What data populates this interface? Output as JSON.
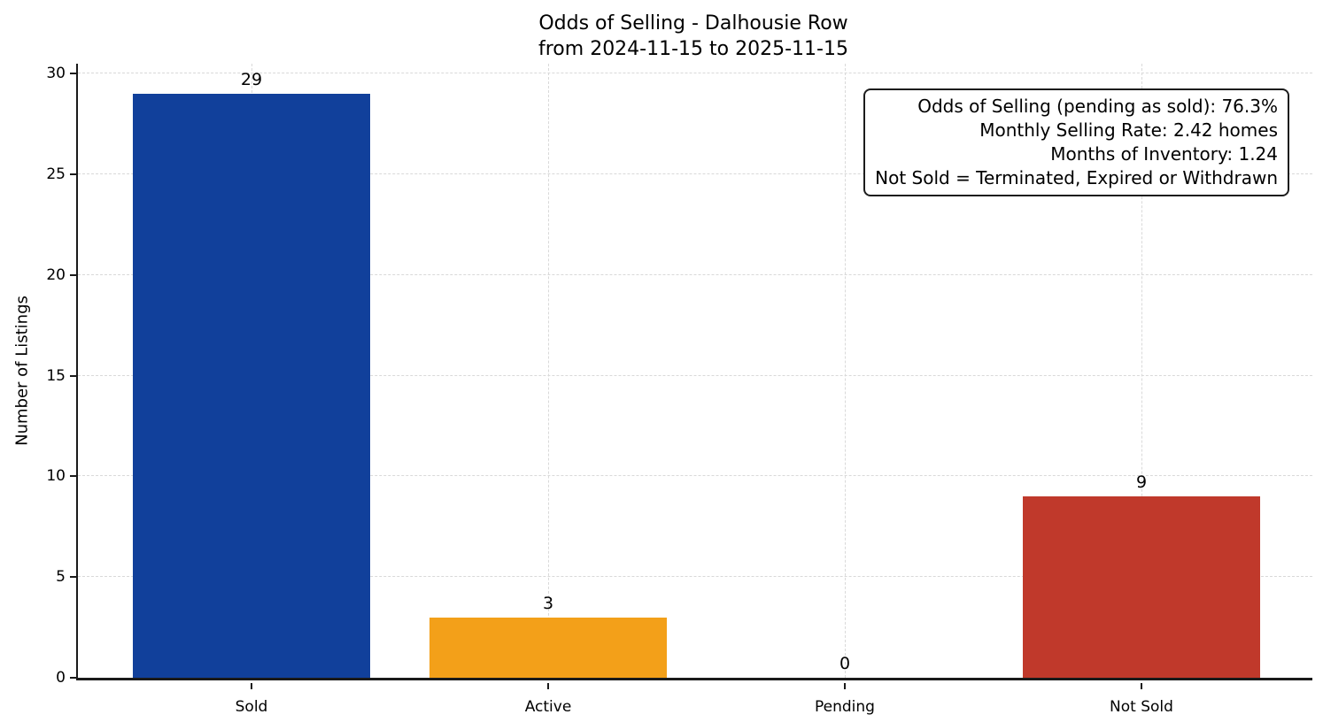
{
  "chart_data": {
    "type": "bar",
    "title": "Odds of Selling - Dalhousie Row",
    "subtitle": "from 2024-11-15 to 2025-11-15",
    "xlabel": "",
    "ylabel": "Number of Listings",
    "categories": [
      "Sold",
      "Active",
      "Pending",
      "Not Sold"
    ],
    "values": [
      29,
      3,
      0,
      9
    ],
    "value_labels": [
      "29",
      "3",
      "0",
      "9"
    ],
    "bar_colors": [
      "#11409b",
      "#f3a019",
      "#9e9e9e",
      "#c0392b"
    ],
    "yticks": [
      0,
      5,
      10,
      15,
      20,
      25,
      30
    ],
    "ylim": [
      0,
      30.5
    ],
    "grid": "both-axes-dashed",
    "legend_position": "none",
    "annotation": {
      "position": "top-right",
      "lines": [
        "Odds of Selling (pending as sold): 76.3%",
        "Monthly Selling Rate: 2.42 homes",
        "Months of Inventory: 1.24",
        "Not Sold = Terminated, Expired or Withdrawn"
      ]
    }
  },
  "colors": {
    "bar_sold": "#11409b",
    "bar_active": "#f3a019",
    "bar_not_sold": "#c0392b",
    "grid": "#d9d9d9",
    "axis": "#1a1a1a",
    "background": "#ffffff",
    "text": "#000000"
  }
}
